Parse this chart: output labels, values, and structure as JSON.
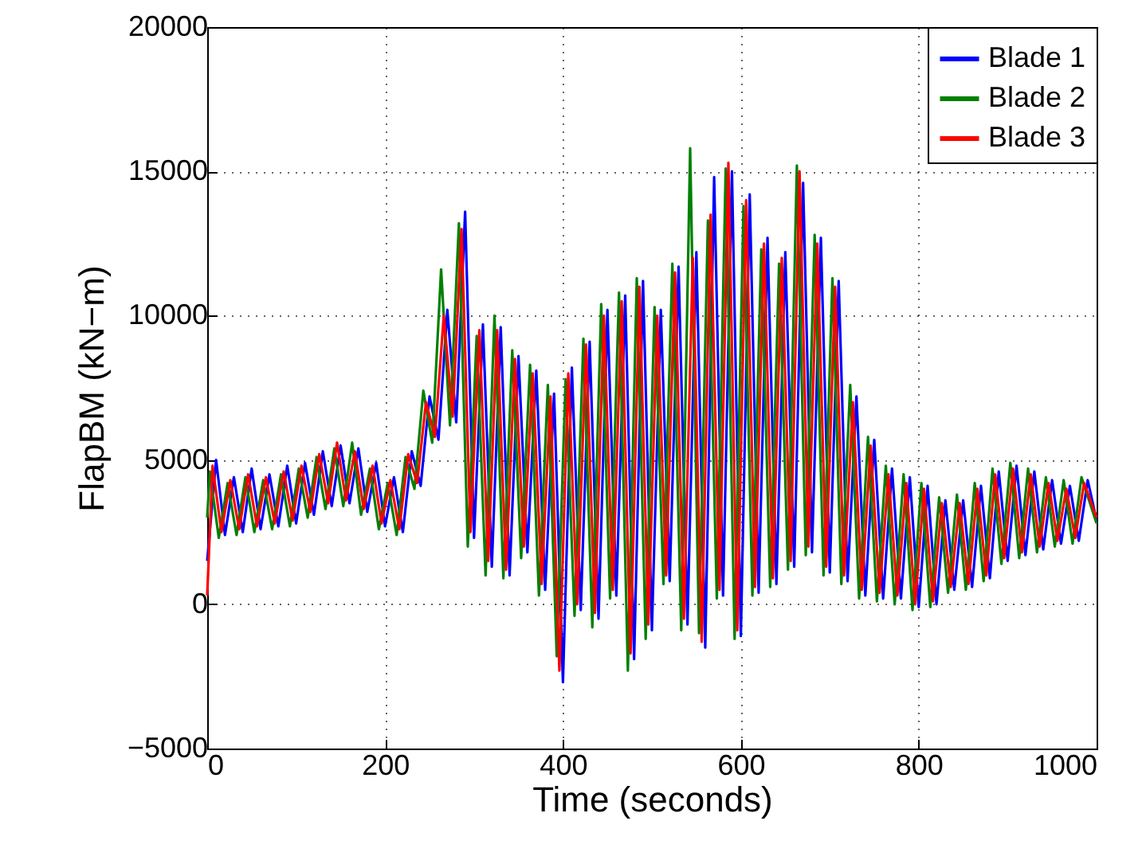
{
  "chart_data": {
    "type": "line",
    "xlabel": "Time (seconds)",
    "ylabel": "FlapBM (kN−m)",
    "x": [
      0,
      10,
      20,
      30,
      40,
      50,
      60,
      70,
      80,
      90,
      100,
      110,
      120,
      130,
      140,
      150,
      160,
      170,
      180,
      190,
      200,
      210,
      220,
      230,
      240,
      250,
      260,
      270,
      280,
      290,
      300,
      310,
      320,
      330,
      340,
      350,
      360,
      370,
      380,
      390,
      400,
      410,
      420,
      430,
      440,
      450,
      460,
      470,
      480,
      490,
      500,
      510,
      520,
      530,
      540,
      550,
      560,
      570,
      580,
      590,
      600,
      610,
      620,
      630,
      640,
      650,
      660,
      670,
      680,
      690,
      700,
      710,
      720,
      730,
      740,
      750,
      760,
      770,
      780,
      790,
      800,
      810,
      820,
      830,
      840,
      850,
      860,
      870,
      880,
      890,
      900,
      910,
      920,
      930,
      940,
      950,
      960,
      970,
      980,
      990,
      1000
    ],
    "series": [
      {
        "name": "Blade 1",
        "color": "#0000ff",
        "values": [
          1500,
          5000,
          2400,
          4400,
          2500,
          4700,
          2600,
          4500,
          2700,
          4800,
          2800,
          4900,
          3100,
          5300,
          3400,
          5500,
          3500,
          5400,
          3200,
          4900,
          2700,
          4400,
          2500,
          5300,
          4100,
          7200,
          5700,
          10200,
          6300,
          13600,
          2300,
          9700,
          1300,
          9600,
          1000,
          8600,
          1800,
          8100,
          500,
          7300,
          -2700,
          8200,
          -200,
          9100,
          -500,
          10200,
          300,
          10700,
          -1900,
          11200,
          -900,
          10200,
          800,
          11700,
          -700,
          12200,
          -1500,
          14800,
          300,
          15000,
          -1100,
          14200,
          400,
          12700,
          700,
          12200,
          1300,
          14600,
          1800,
          12700,
          1100,
          11200,
          800,
          7200,
          300,
          5700,
          200,
          4700,
          200,
          4400,
          -100,
          4100,
          0,
          3600,
          500,
          3600,
          600,
          4100,
          900,
          4600,
          1500,
          4800,
          1700,
          4600,
          1900,
          4300,
          2100,
          4100,
          2200,
          4300,
          2900
        ]
      },
      {
        "name": "Blade 2",
        "color": "#008000",
        "x": [
          0,
          3,
          13,
          23,
          33,
          43,
          53,
          63,
          73,
          83,
          93,
          103,
          113,
          123,
          133,
          143,
          153,
          163,
          173,
          183,
          193,
          203,
          213,
          223,
          233,
          243,
          253,
          263,
          273,
          283,
          293,
          303,
          313,
          323,
          333,
          343,
          353,
          363,
          373,
          383,
          393,
          403,
          413,
          423,
          433,
          443,
          453,
          463,
          473,
          483,
          493,
          503,
          513,
          523,
          533,
          543,
          553,
          563,
          573,
          583,
          593,
          603,
          613,
          623,
          633,
          643,
          653,
          663,
          673,
          683,
          693,
          703,
          713,
          723,
          733,
          743,
          753,
          763,
          773,
          783,
          793,
          803,
          813,
          823,
          833,
          843,
          853,
          863,
          873,
          883,
          893,
          903,
          913,
          923,
          933,
          943,
          953,
          963,
          973,
          983,
          1000
        ],
        "values": [
          3000,
          4600,
          2300,
          4200,
          2400,
          4400,
          2500,
          4300,
          2600,
          4500,
          2700,
          4700,
          3000,
          5100,
          3300,
          5400,
          3400,
          5600,
          3100,
          4700,
          2600,
          4200,
          2400,
          5100,
          4000,
          7400,
          5600,
          11600,
          6200,
          13200,
          2000,
          9300,
          1000,
          10000,
          900,
          8800,
          1600,
          8300,
          300,
          7600,
          -1800,
          7800,
          -400,
          9200,
          -800,
          10400,
          200,
          10800,
          -2300,
          11300,
          -1200,
          10300,
          700,
          11800,
          -900,
          15800,
          -1000,
          13300,
          200,
          15100,
          -1200,
          13800,
          300,
          12300,
          600,
          11800,
          1200,
          15200,
          1700,
          12800,
          1000,
          11300,
          700,
          7600,
          200,
          5800,
          100,
          4800,
          0,
          4500,
          -200,
          4200,
          -100,
          3700,
          400,
          3800,
          500,
          4200,
          800,
          4700,
          1400,
          4900,
          1600,
          4700,
          1800,
          4400,
          2000,
          4300,
          2100,
          4400,
          2800
        ]
      },
      {
        "name": "Blade 3",
        "color": "#ff0000",
        "x": [
          0,
          6,
          16,
          26,
          36,
          46,
          56,
          66,
          76,
          86,
          96,
          106,
          116,
          126,
          136,
          146,
          156,
          166,
          176,
          186,
          196,
          206,
          216,
          226,
          236,
          246,
          256,
          266,
          276,
          286,
          296,
          306,
          316,
          326,
          336,
          346,
          356,
          366,
          376,
          386,
          396,
          406,
          416,
          426,
          436,
          446,
          456,
          466,
          476,
          486,
          496,
          506,
          516,
          526,
          536,
          546,
          556,
          566,
          576,
          586,
          596,
          606,
          616,
          626,
          636,
          646,
          656,
          666,
          676,
          686,
          696,
          706,
          716,
          726,
          736,
          746,
          756,
          766,
          776,
          786,
          796,
          806,
          816,
          826,
          836,
          846,
          856,
          866,
          876,
          886,
          896,
          906,
          916,
          926,
          936,
          946,
          956,
          966,
          976,
          986,
          1000
        ],
        "values": [
          300,
          4800,
          2500,
          4300,
          2600,
          4500,
          2700,
          4400,
          2800,
          4600,
          2900,
          4800,
          3200,
          5200,
          3500,
          5600,
          3600,
          5300,
          3300,
          4800,
          2800,
          4300,
          2600,
          5200,
          4200,
          7000,
          5800,
          10000,
          6500,
          13000,
          2500,
          9500,
          1500,
          9500,
          1200,
          8500,
          2000,
          8000,
          700,
          7200,
          -2300,
          8000,
          0,
          9000,
          -300,
          10000,
          500,
          10500,
          -1700,
          11000,
          -700,
          10000,
          1000,
          11500,
          -500,
          12000,
          -1300,
          13500,
          500,
          15300,
          -900,
          14000,
          600,
          12500,
          900,
          12000,
          1500,
          15000,
          2000,
          12500,
          1300,
          11000,
          1000,
          7000,
          500,
          5500,
          400,
          4500,
          300,
          4200,
          0,
          4000,
          100,
          3500,
          600,
          3500,
          700,
          4000,
          1000,
          4500,
          1600,
          4700,
          1800,
          4500,
          2000,
          4200,
          2200,
          4000,
          2300,
          4200,
          3000
        ]
      }
    ],
    "xlim": [
      0,
      1000
    ],
    "xticks": [
      0,
      200,
      400,
      600,
      800,
      1000
    ],
    "ylim": [
      -5000,
      20000
    ],
    "yticks": [
      -5000,
      0,
      5000,
      10000,
      15000,
      20000
    ],
    "grid": true,
    "legend": "top right",
    "marker": "none",
    "line_style": "solid"
  }
}
